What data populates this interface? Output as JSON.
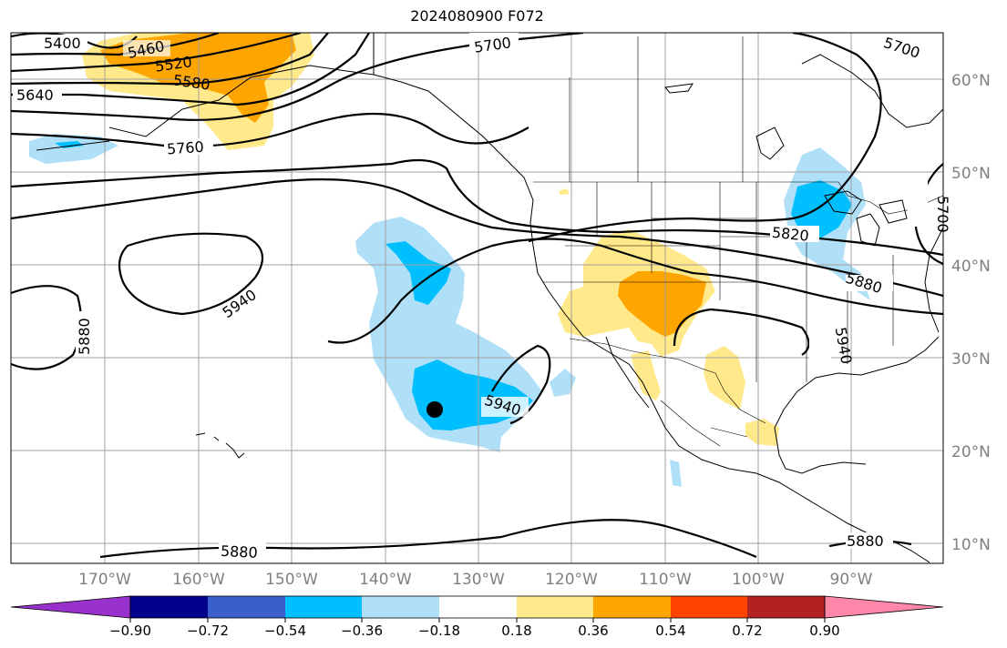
{
  "title": "2024080900 F072",
  "map": {
    "lon_ticks": [
      "170°W",
      "160°W",
      "150°W",
      "140°W",
      "130°W",
      "120°W",
      "110°W",
      "100°W",
      "90°W"
    ],
    "lat_ticks": [
      "60°N",
      "50°N",
      "40°N",
      "30°N",
      "20°N",
      "10°N"
    ],
    "contour_labels": [
      "5400",
      "5460",
      "5520",
      "5580",
      "5640",
      "5700",
      "5700",
      "5760",
      "5820",
      "5880",
      "5880",
      "5880",
      "5880",
      "5940",
      "5940",
      "5940",
      "5700"
    ],
    "storm_marker": "black-dot",
    "colors": {
      "purple": "#9932cc",
      "navy": "#00008b",
      "royal": "#3a5fcd",
      "deepsky": "#00bfff",
      "lightblue": "#b0e0f8",
      "white": "#ffffff",
      "yellow": "#ffe98a",
      "orange": "#ffa500",
      "orangered": "#ff4500",
      "firebrick": "#b22222",
      "pink": "#ff88aa"
    }
  },
  "colorbar": {
    "labels": [
      "−0.90",
      "−0.72",
      "−0.54",
      "−0.36",
      "−0.18",
      "0.18",
      "0.36",
      "0.54",
      "0.72",
      "0.90"
    ]
  }
}
